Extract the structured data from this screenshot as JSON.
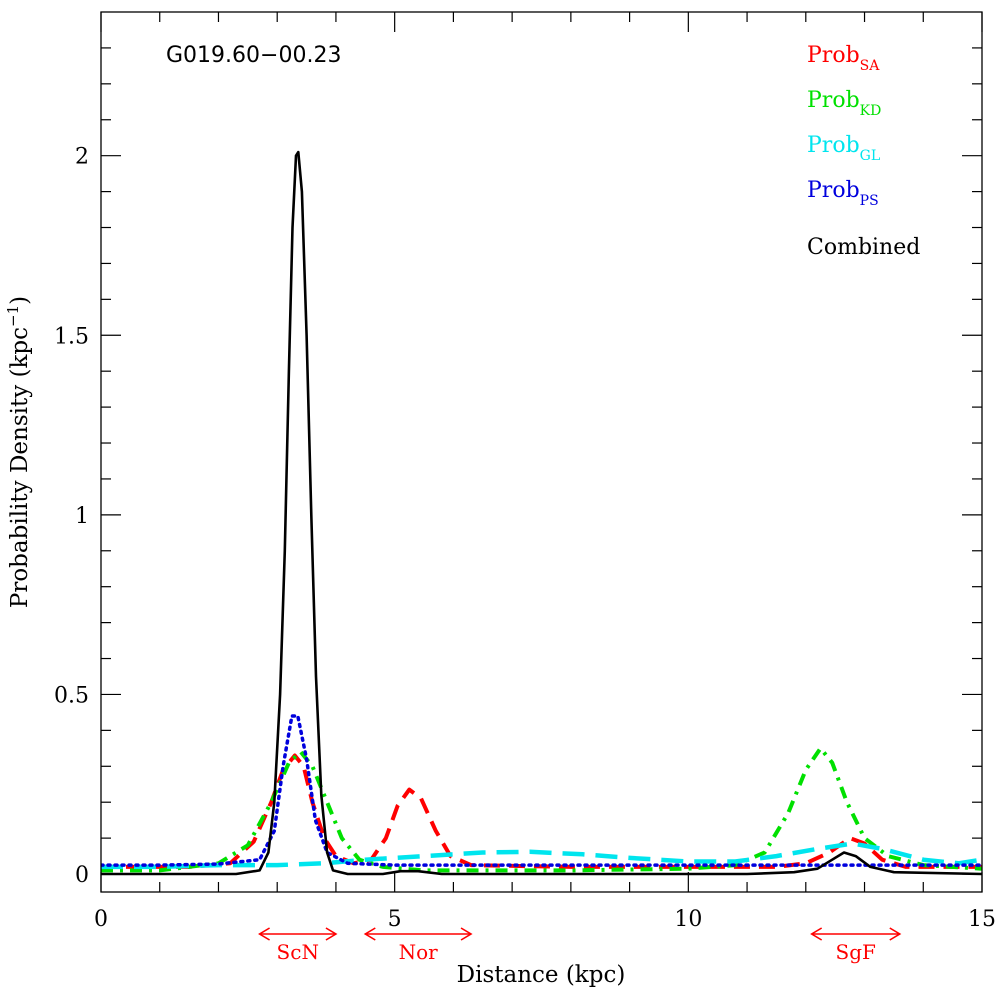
{
  "object_label": "G019.60−00.23",
  "colors": {
    "sa": "#ff0000",
    "kd": "#00e000",
    "gl": "#00e5ee",
    "ps": "#0000dd",
    "combined": "#000000",
    "arms": "#ff0000"
  },
  "chart_data": {
    "type": "line",
    "xlabel": "Distance (kpc)",
    "ylabel": "Probability Density (kpc",
    "ylabel_sup": "−1",
    "ylabel_close": ")",
    "xlim": [
      0,
      15
    ],
    "ylim": [
      -0.05,
      2.4
    ],
    "xticks": [
      0,
      5,
      10,
      15
    ],
    "xtick_labels": [
      "0",
      "5",
      "10",
      "15"
    ],
    "yticks": [
      0,
      0.5,
      1,
      1.5,
      2
    ],
    "ytick_labels": [
      "0",
      "0.5",
      "1",
      "1.5",
      "2"
    ],
    "grid": false,
    "legend_position": "top-right",
    "series": [
      {
        "key": "sa",
        "name": "Prob",
        "sub": "SA",
        "style": "dashed",
        "points": [
          [
            0,
            0.02
          ],
          [
            1.5,
            0.02
          ],
          [
            2.2,
            0.03
          ],
          [
            2.6,
            0.09
          ],
          [
            2.9,
            0.2
          ],
          [
            3.1,
            0.29
          ],
          [
            3.3,
            0.33
          ],
          [
            3.45,
            0.3
          ],
          [
            3.6,
            0.2
          ],
          [
            3.8,
            0.1
          ],
          [
            4.0,
            0.05
          ],
          [
            4.3,
            0.03
          ],
          [
            4.6,
            0.04
          ],
          [
            4.85,
            0.1
          ],
          [
            5.05,
            0.19
          ],
          [
            5.25,
            0.235
          ],
          [
            5.45,
            0.21
          ],
          [
            5.7,
            0.12
          ],
          [
            5.95,
            0.05
          ],
          [
            6.3,
            0.025
          ],
          [
            8,
            0.02
          ],
          [
            10,
            0.02
          ],
          [
            11.5,
            0.02
          ],
          [
            12.0,
            0.03
          ],
          [
            12.4,
            0.06
          ],
          [
            12.75,
            0.1
          ],
          [
            13.0,
            0.085
          ],
          [
            13.3,
            0.04
          ],
          [
            13.7,
            0.02
          ],
          [
            15,
            0.02
          ]
        ]
      },
      {
        "key": "kd",
        "name": "Prob",
        "sub": "KD",
        "style": "dash-dot",
        "points": [
          [
            0,
            0.01
          ],
          [
            1.0,
            0.01
          ],
          [
            2.0,
            0.03
          ],
          [
            2.5,
            0.08
          ],
          [
            2.9,
            0.2
          ],
          [
            3.2,
            0.31
          ],
          [
            3.4,
            0.34
          ],
          [
            3.6,
            0.3
          ],
          [
            3.85,
            0.2
          ],
          [
            4.1,
            0.1
          ],
          [
            4.4,
            0.04
          ],
          [
            4.8,
            0.02
          ],
          [
            5.5,
            0.01
          ],
          [
            8,
            0.01
          ],
          [
            10,
            0.015
          ],
          [
            10.8,
            0.025
          ],
          [
            11.3,
            0.06
          ],
          [
            11.7,
            0.17
          ],
          [
            12.0,
            0.29
          ],
          [
            12.25,
            0.35
          ],
          [
            12.45,
            0.31
          ],
          [
            12.7,
            0.2
          ],
          [
            13.0,
            0.1
          ],
          [
            13.4,
            0.05
          ],
          [
            14,
            0.025
          ],
          [
            15,
            0.015
          ]
        ]
      },
      {
        "key": "gl",
        "name": "Prob",
        "sub": "GL",
        "style": "long-dashed",
        "points": [
          [
            0,
            0.02
          ],
          [
            1.0,
            0.02
          ],
          [
            2.0,
            0.025
          ],
          [
            3.0,
            0.025
          ],
          [
            3.8,
            0.03
          ],
          [
            4.5,
            0.04
          ],
          [
            5.5,
            0.05
          ],
          [
            6.5,
            0.06
          ],
          [
            7.3,
            0.062
          ],
          [
            8.2,
            0.055
          ],
          [
            9.0,
            0.045
          ],
          [
            10.0,
            0.035
          ],
          [
            10.8,
            0.035
          ],
          [
            11.5,
            0.05
          ],
          [
            12.2,
            0.07
          ],
          [
            12.8,
            0.085
          ],
          [
            13.3,
            0.07
          ],
          [
            14.0,
            0.04
          ],
          [
            14.6,
            0.03
          ],
          [
            15,
            0.04
          ]
        ]
      },
      {
        "key": "ps",
        "name": "Prob",
        "sub": "PS",
        "style": "dotted",
        "points": [
          [
            0,
            0.025
          ],
          [
            1.0,
            0.025
          ],
          [
            2.0,
            0.028
          ],
          [
            2.7,
            0.04
          ],
          [
            2.95,
            0.12
          ],
          [
            3.1,
            0.3
          ],
          [
            3.25,
            0.44
          ],
          [
            3.35,
            0.44
          ],
          [
            3.5,
            0.32
          ],
          [
            3.65,
            0.15
          ],
          [
            3.85,
            0.06
          ],
          [
            4.2,
            0.03
          ],
          [
            5,
            0.025
          ],
          [
            8,
            0.025
          ],
          [
            10,
            0.025
          ],
          [
            12,
            0.025
          ],
          [
            13,
            0.025
          ],
          [
            15,
            0.025
          ]
        ]
      },
      {
        "key": "combined",
        "name": "Combined",
        "sub": "",
        "style": "solid",
        "points": [
          [
            0,
            0.0
          ],
          [
            2.3,
            0.0
          ],
          [
            2.7,
            0.01
          ],
          [
            2.85,
            0.06
          ],
          [
            2.95,
            0.2
          ],
          [
            3.05,
            0.5
          ],
          [
            3.13,
            0.9
          ],
          [
            3.2,
            1.4
          ],
          [
            3.26,
            1.8
          ],
          [
            3.32,
            2.0
          ],
          [
            3.36,
            2.01
          ],
          [
            3.42,
            1.9
          ],
          [
            3.5,
            1.5
          ],
          [
            3.58,
            1.0
          ],
          [
            3.66,
            0.55
          ],
          [
            3.75,
            0.22
          ],
          [
            3.85,
            0.06
          ],
          [
            3.95,
            0.01
          ],
          [
            4.2,
            0.0
          ],
          [
            4.8,
            0.0
          ],
          [
            5.1,
            0.008
          ],
          [
            5.4,
            0.008
          ],
          [
            5.8,
            0.0
          ],
          [
            11,
            0.0
          ],
          [
            11.8,
            0.005
          ],
          [
            12.2,
            0.015
          ],
          [
            12.45,
            0.04
          ],
          [
            12.65,
            0.06
          ],
          [
            12.85,
            0.05
          ],
          [
            13.1,
            0.02
          ],
          [
            13.5,
            0.005
          ],
          [
            15,
            0.0
          ]
        ]
      }
    ],
    "arm_markers": [
      {
        "label": "ScN",
        "x_start": 2.7,
        "x_end": 4.0
      },
      {
        "label": "Nor",
        "x_start": 4.5,
        "x_end": 6.3
      },
      {
        "label": "SgF",
        "x_start": 12.1,
        "x_end": 13.6
      }
    ]
  }
}
